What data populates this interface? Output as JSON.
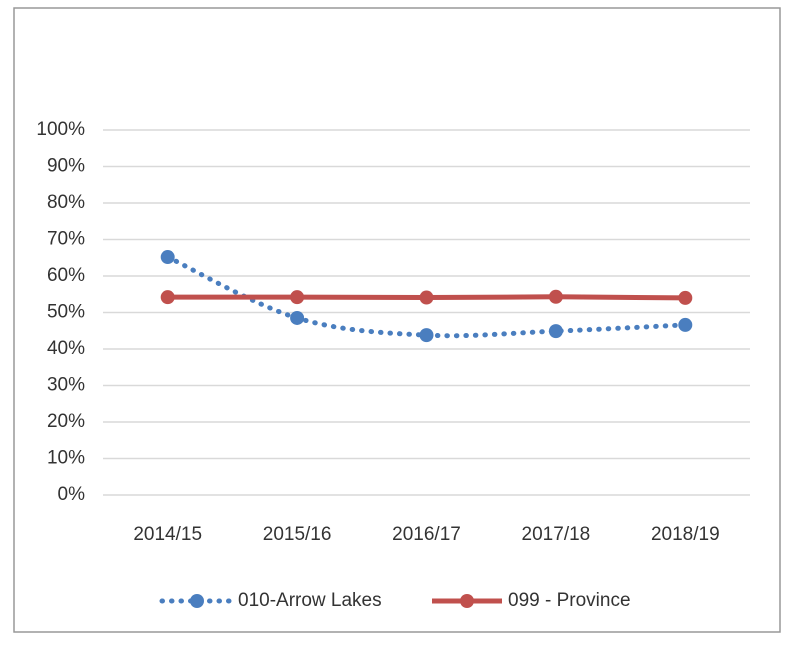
{
  "chart_data": {
    "type": "line",
    "categories": [
      "2014/15",
      "2015/16",
      "2016/17",
      "2017/18",
      "2018/19"
    ],
    "series": [
      {
        "name": "010-Arrow Lakes",
        "color": "#4a7ebf",
        "line_style": "dotted",
        "smooth": true,
        "values": [
          65.2,
          48.5,
          43.8,
          44.9,
          46.6
        ]
      },
      {
        "name": "099 - Province",
        "color": "#c0504d",
        "line_style": "solid",
        "smooth": false,
        "values": [
          54.2,
          54.2,
          54.1,
          54.3,
          54.0
        ]
      }
    ],
    "ylim": [
      0,
      100
    ],
    "yticks": [
      {
        "value": 0,
        "label": "0%"
      },
      {
        "value": 10,
        "label": "10%"
      },
      {
        "value": 20,
        "label": "20%"
      },
      {
        "value": 30,
        "label": "30%"
      },
      {
        "value": 40,
        "label": "40%"
      },
      {
        "value": 50,
        "label": "50%"
      },
      {
        "value": 60,
        "label": "60%"
      },
      {
        "value": 70,
        "label": "70%"
      },
      {
        "value": 80,
        "label": "80%"
      },
      {
        "value": 90,
        "label": "90%"
      },
      {
        "value": 100,
        "label": "100%"
      }
    ],
    "grid": true,
    "legend": "bottom"
  }
}
